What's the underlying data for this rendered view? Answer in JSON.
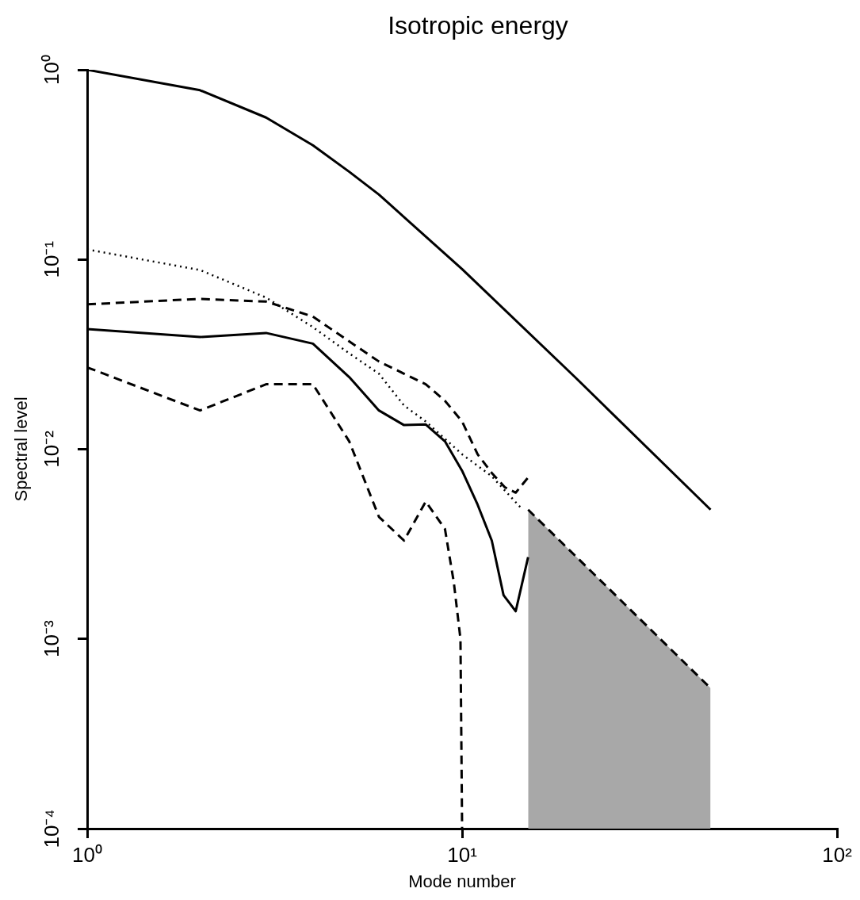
{
  "chart_data": {
    "type": "line",
    "title": "Isotropic energy",
    "xlabel": "Mode number",
    "ylabel": "Spectral level",
    "log": "xy",
    "grid": false,
    "legend": false,
    "marker": "none",
    "xlim": [
      1,
      100
    ],
    "xticks": [
      {
        "value": 1,
        "label": "10⁰"
      },
      {
        "value": 10,
        "label": "10¹"
      },
      {
        "value": 100,
        "label": "10²"
      }
    ],
    "ylim": [
      0.0001,
      1
    ],
    "yticks": [
      {
        "value": 0.0001,
        "label": "10⁻⁴"
      },
      {
        "value": 0.001,
        "label": "10⁻³"
      },
      {
        "value": 0.01,
        "label": "10⁻²"
      },
      {
        "value": 0.1,
        "label": "10⁻¹"
      },
      {
        "value": 1,
        "label": "10⁰"
      }
    ],
    "series": [
      {
        "color": "#000000",
        "line_style": "solid",
        "x": [
          1,
          2,
          3,
          4,
          5,
          6,
          10,
          20,
          46
        ],
        "values": [
          1,
          0.78,
          0.56,
          0.4,
          0.29,
          0.22,
          0.089,
          0.024,
          0.0048
        ]
      },
      {
        "color": "#000000",
        "line_style": "dotted",
        "x": [
          1,
          2,
          3,
          4,
          5,
          6,
          7,
          8,
          10,
          12,
          14.5
        ],
        "values": [
          0.113,
          0.088,
          0.063,
          0.044,
          0.032,
          0.025,
          0.017,
          0.014,
          0.0094,
          0.0072,
          0.0048
        ]
      },
      {
        "color": "#000000",
        "line_style": "dashed",
        "x": [
          1,
          2,
          3,
          4,
          5,
          6,
          7,
          8,
          9,
          10,
          11,
          12,
          13,
          13.9,
          15
        ],
        "values": [
          0.058,
          0.062,
          0.06,
          0.05,
          0.037,
          0.029,
          0.025,
          0.022,
          0.018,
          0.014,
          0.0094,
          0.0075,
          0.0063,
          0.0059,
          0.0071
        ]
      },
      {
        "color": "#000000",
        "line_style": "solid",
        "x": [
          1,
          2,
          3,
          4,
          5,
          6,
          7,
          8,
          9,
          10,
          11,
          12,
          12.9,
          13.9,
          15
        ],
        "values": [
          0.043,
          0.039,
          0.041,
          0.036,
          0.024,
          0.016,
          0.0134,
          0.0135,
          0.011,
          0.0077,
          0.0051,
          0.0033,
          0.0017,
          0.0014,
          0.0027
        ]
      },
      {
        "color": "#000000",
        "line_style": "dashed",
        "x": [
          1,
          2,
          3,
          4,
          5,
          6,
          7,
          8,
          9,
          9.5,
          9.9,
          10
        ],
        "values": [
          0.027,
          0.016,
          0.022,
          0.022,
          0.011,
          0.0044,
          0.0033,
          0.0053,
          0.0038,
          0.002,
          0.001,
          0.0001
        ]
      },
      {
        "type": "area",
        "color": "#a8a8a8",
        "line_style": "dashed",
        "x": [
          15,
          46
        ],
        "values": [
          0.0048,
          0.00055
        ]
      }
    ]
  }
}
